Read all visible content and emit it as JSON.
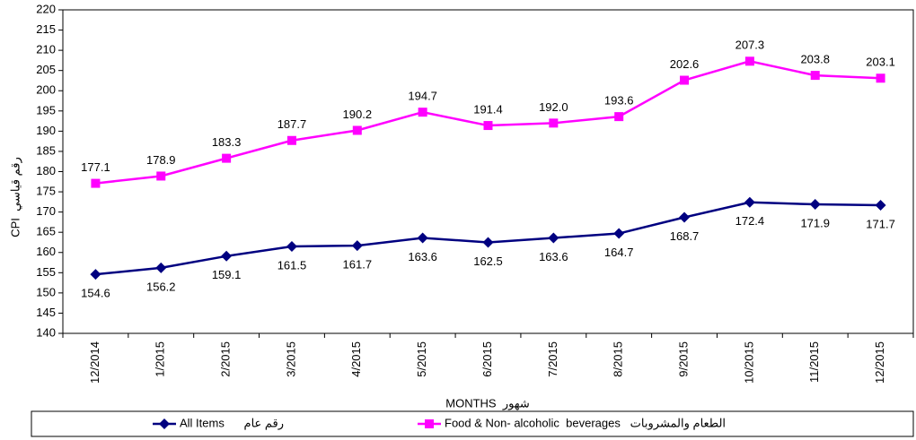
{
  "chart_data": {
    "type": "line",
    "xlabel": "MONTHS  شهور",
    "ylabel": "CPI  رقم قياسي",
    "categories": [
      "12/2014",
      "1/2015",
      "2/2015",
      "3/2015",
      "4/2015",
      "5/2015",
      "6/2015",
      "7/2015",
      "8/2015",
      "9/2015",
      "10/2015",
      "11/2015",
      "12/2015"
    ],
    "series": [
      {
        "name": "All Items      رقم عام",
        "color": "#000080",
        "marker": "diamond",
        "values": [
          154.6,
          156.2,
          159.1,
          161.5,
          161.7,
          163.6,
          162.5,
          163.6,
          164.7,
          168.7,
          172.4,
          171.9,
          171.7
        ],
        "value_labels": [
          "154.6",
          "156.2",
          "159.1",
          "161.5",
          "161.7",
          "163.6",
          "162.5",
          "163.6",
          "164.7",
          "168.7",
          "172.4",
          "171.9",
          "171.7"
        ]
      },
      {
        "name": "Food & Non- alcoholic  beverages   الطعام والمشروبات",
        "color": "#ff00ff",
        "marker": "square",
        "values": [
          177.1,
          178.9,
          183.3,
          187.7,
          190.2,
          194.7,
          191.4,
          192.0,
          193.6,
          202.6,
          207.3,
          203.8,
          203.1
        ],
        "value_labels": [
          "177.1",
          "178.9",
          "183.3",
          "187.7",
          "190.2",
          "194.7",
          "191.4",
          "192.0",
          "193.6",
          "202.6",
          "207.3",
          "203.8",
          "203.1"
        ]
      }
    ],
    "ylim": [
      140,
      220
    ],
    "yticks": [
      140,
      145,
      150,
      155,
      160,
      165,
      170,
      175,
      180,
      185,
      190,
      195,
      200,
      205,
      210,
      215,
      220
    ],
    "grid": false,
    "legend": "bottom"
  }
}
